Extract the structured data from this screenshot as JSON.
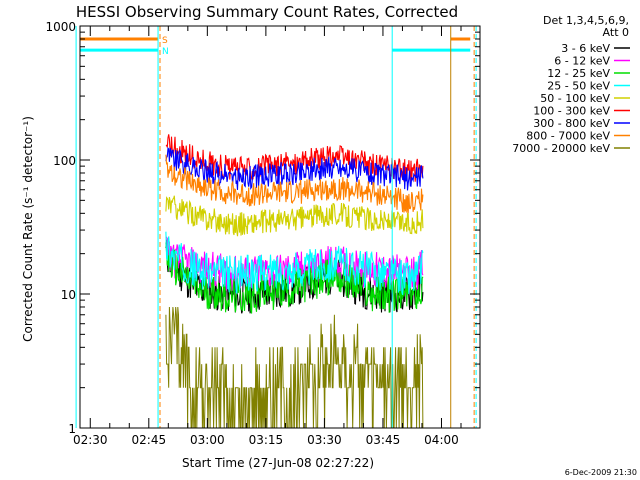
{
  "chart_data": {
    "type": "line",
    "title": "HESSI Observing Summary Count Rates, Corrected",
    "xlabel": "Start Time (27-Jun-08 02:27:22)",
    "ylabel": "Corrected Count Rate (s⁻¹ detector⁻¹)",
    "x_ticks": [
      "02:30",
      "02:45",
      "03:00",
      "03:15",
      "03:30",
      "03:45",
      "04:00"
    ],
    "x_tick_minutes": [
      2.63,
      17.63,
      32.63,
      47.63,
      62.63,
      77.63,
      92.63
    ],
    "x_range_minutes": [
      0,
      102.5
    ],
    "y_scale": "log",
    "ylim": [
      1,
      1000
    ],
    "y_ticks": [
      1,
      10,
      100,
      1000
    ],
    "y_tick_labels": [
      "1",
      "10",
      "100",
      "1000"
    ],
    "legend_header": [
      "Det 1,3,4,5,6,9,",
      "Att 0"
    ],
    "legend_position": "right",
    "series": [
      {
        "name": "3 - 6 keV",
        "color": "#000000",
        "x": [
          22,
          24,
          30,
          40,
          55,
          65,
          75,
          85,
          88
        ],
        "values": [
          20,
          16,
          11,
          9.5,
          11,
          14,
          10,
          10,
          12
        ]
      },
      {
        "name": "6 - 12 keV",
        "color": "#ff00ff",
        "x": [
          22,
          24,
          30,
          40,
          55,
          65,
          75,
          85,
          88
        ],
        "values": [
          22,
          18,
          16,
          14,
          15,
          17,
          15,
          14,
          16
        ]
      },
      {
        "name": "12 - 25 keV",
        "color": "#00dd00",
        "x": [
          22,
          24,
          30,
          40,
          55,
          65,
          75,
          85,
          88
        ],
        "values": [
          19,
          16,
          11,
          9.5,
          11,
          14,
          10,
          10,
          11
        ]
      },
      {
        "name": "25 - 50 keV",
        "color": "#00ffff",
        "x": [
          22,
          24,
          30,
          40,
          55,
          65,
          75,
          85,
          88
        ],
        "values": [
          23,
          19,
          15,
          14,
          15,
          17,
          15,
          13,
          16
        ]
      },
      {
        "name": "50 - 100 keV",
        "color": "#d0d000",
        "x": [
          22,
          24,
          30,
          40,
          55,
          65,
          75,
          85,
          88
        ],
        "values": [
          50,
          45,
          38,
          33,
          36,
          40,
          36,
          33,
          35
        ]
      },
      {
        "name": "100 - 300 keV",
        "color": "#ff0000",
        "x": [
          22,
          24,
          30,
          40,
          55,
          65,
          75,
          85,
          88
        ],
        "values": [
          140,
          125,
          100,
          85,
          95,
          108,
          92,
          82,
          90
        ]
      },
      {
        "name": "300 - 800 keV",
        "color": "#0000ff",
        "x": [
          22,
          24,
          30,
          40,
          55,
          65,
          75,
          85,
          88
        ],
        "values": [
          115,
          102,
          85,
          73,
          80,
          90,
          80,
          72,
          78
        ]
      },
      {
        "name": "800 - 7000 keV",
        "color": "#ff8000",
        "x": [
          22,
          24,
          30,
          40,
          55,
          65,
          75,
          85,
          88
        ],
        "values": [
          90,
          80,
          65,
          55,
          57,
          62,
          57,
          48,
          52
        ]
      },
      {
        "name": "7000 - 20000 keV",
        "color": "#808000",
        "x": [
          22,
          24,
          30,
          40,
          55,
          65,
          75,
          85,
          88
        ],
        "values": [
          5,
          4,
          2,
          1.5,
          2,
          3.5,
          2,
          2,
          3
        ]
      }
    ],
    "annotations": [
      {
        "label": "S",
        "color": "#ff8000",
        "y": 800,
        "segments": [
          [
            0,
            20
          ],
          [
            95,
            100
          ]
        ]
      },
      {
        "label": "N",
        "color": "#00ffff",
        "y": 660,
        "segments": [
          [
            0,
            20
          ],
          [
            80,
            100
          ]
        ]
      }
    ]
  },
  "footer": {
    "date_stamp": "6-Dec-2009 21:30"
  }
}
